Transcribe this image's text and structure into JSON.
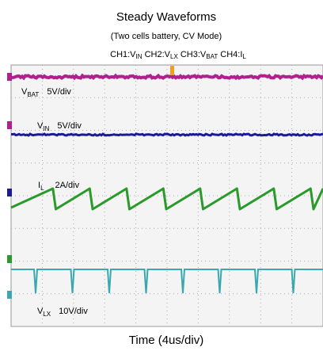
{
  "header": {
    "title": "Steady Waveforms",
    "subtitle": "(Two cells battery, CV Mode)",
    "channels": [
      {
        "label": "CH1:V",
        "sub": "IN"
      },
      {
        "label": "CH2:V",
        "sub": "LX"
      },
      {
        "label": "CH3:V",
        "sub": "BAT"
      },
      {
        "label": "CH4:I",
        "sub": "L"
      }
    ]
  },
  "traces": [
    {
      "name": "V",
      "sub": "BAT",
      "scale": "5V/div"
    },
    {
      "name": "V",
      "sub": "IN",
      "scale": "5V/div"
    },
    {
      "name": "I",
      "sub": "L",
      "scale": "2A/div"
    },
    {
      "name": "V",
      "sub": "LX",
      "scale": "10V/div"
    }
  ],
  "footer": {
    "x_label": "Time (4us/div)"
  }
}
